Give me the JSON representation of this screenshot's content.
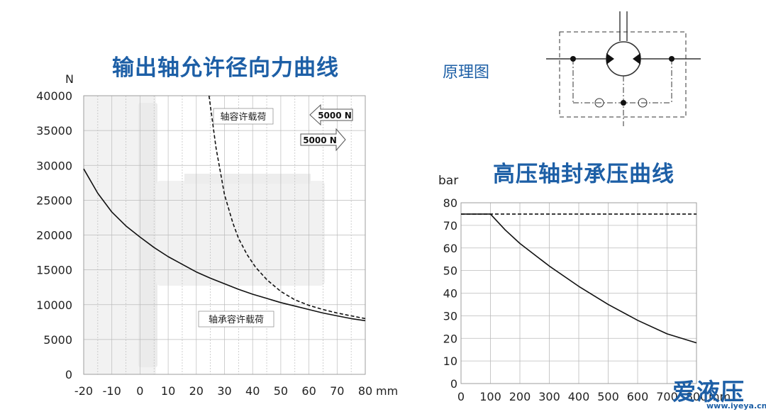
{
  "left_title": "输出轴允许径向力曲线",
  "right_title": "高压轴封承压曲线",
  "schematic_title": "原理图",
  "watermark": {
    "logo": "爱液压",
    "url": "www.iyeya.cn"
  },
  "colors": {
    "title": "#1d5fa6",
    "curve": "#111111",
    "grid": "#bbbbbb"
  },
  "chart_data": [
    {
      "type": "line",
      "title": "输出轴允许径向力曲线",
      "xlabel": "mm",
      "ylabel": "N",
      "xlim": [
        -20,
        80
      ],
      "ylim": [
        0,
        40000
      ],
      "xticks": [
        -20,
        -10,
        0,
        10,
        20,
        30,
        40,
        50,
        60,
        70,
        80
      ],
      "yticks": [
        0,
        5000,
        10000,
        15000,
        20000,
        25000,
        30000,
        35000,
        40000
      ],
      "grid": true,
      "series": [
        {
          "name": "轴承容许载荷",
          "style": "solid",
          "x": [
            -20,
            -15,
            -10,
            -5,
            0,
            5,
            10,
            15,
            20,
            25,
            30,
            35,
            40,
            45,
            50,
            55,
            60,
            65,
            70,
            75,
            80
          ],
          "y": [
            29500,
            26000,
            23300,
            21300,
            19700,
            18200,
            16900,
            15800,
            14700,
            13800,
            13000,
            12200,
            11500,
            10900,
            10300,
            9800,
            9300,
            8800,
            8400,
            8000,
            7700
          ]
        },
        {
          "name": "轴容许载荷",
          "style": "dashed",
          "x": [
            24.5,
            27,
            30,
            33,
            35,
            38,
            41,
            45,
            50,
            55,
            60,
            65,
            70,
            75,
            80
          ],
          "y": [
            40000,
            32500,
            25800,
            21700,
            19500,
            17200,
            15400,
            13600,
            11900,
            10700,
            9900,
            9300,
            8800,
            8400,
            8000
          ]
        }
      ],
      "annotations": [
        {
          "text": "5000 N",
          "arrow": "left"
        },
        {
          "text": "5000 N",
          "arrow": "right"
        }
      ]
    },
    {
      "type": "line",
      "title": "高压轴封承压曲线",
      "xlabel": "mm",
      "ylabel": "bar",
      "xlim": [
        0,
        800
      ],
      "ylim": [
        0,
        80
      ],
      "xticks": [
        0,
        100,
        200,
        300,
        400,
        500,
        600,
        700,
        800
      ],
      "yticks": [
        0,
        10,
        20,
        30,
        40,
        50,
        60,
        70,
        80
      ],
      "grid": true,
      "series": [
        {
          "style": "solid",
          "x": [
            0,
            100,
            150,
            200,
            300,
            400,
            500,
            600,
            700,
            800
          ],
          "y": [
            75,
            75,
            68,
            62,
            52,
            43,
            35,
            28,
            22,
            18
          ]
        },
        {
          "style": "dashed",
          "x": [
            0,
            800
          ],
          "y": [
            75,
            75
          ]
        }
      ]
    }
  ]
}
